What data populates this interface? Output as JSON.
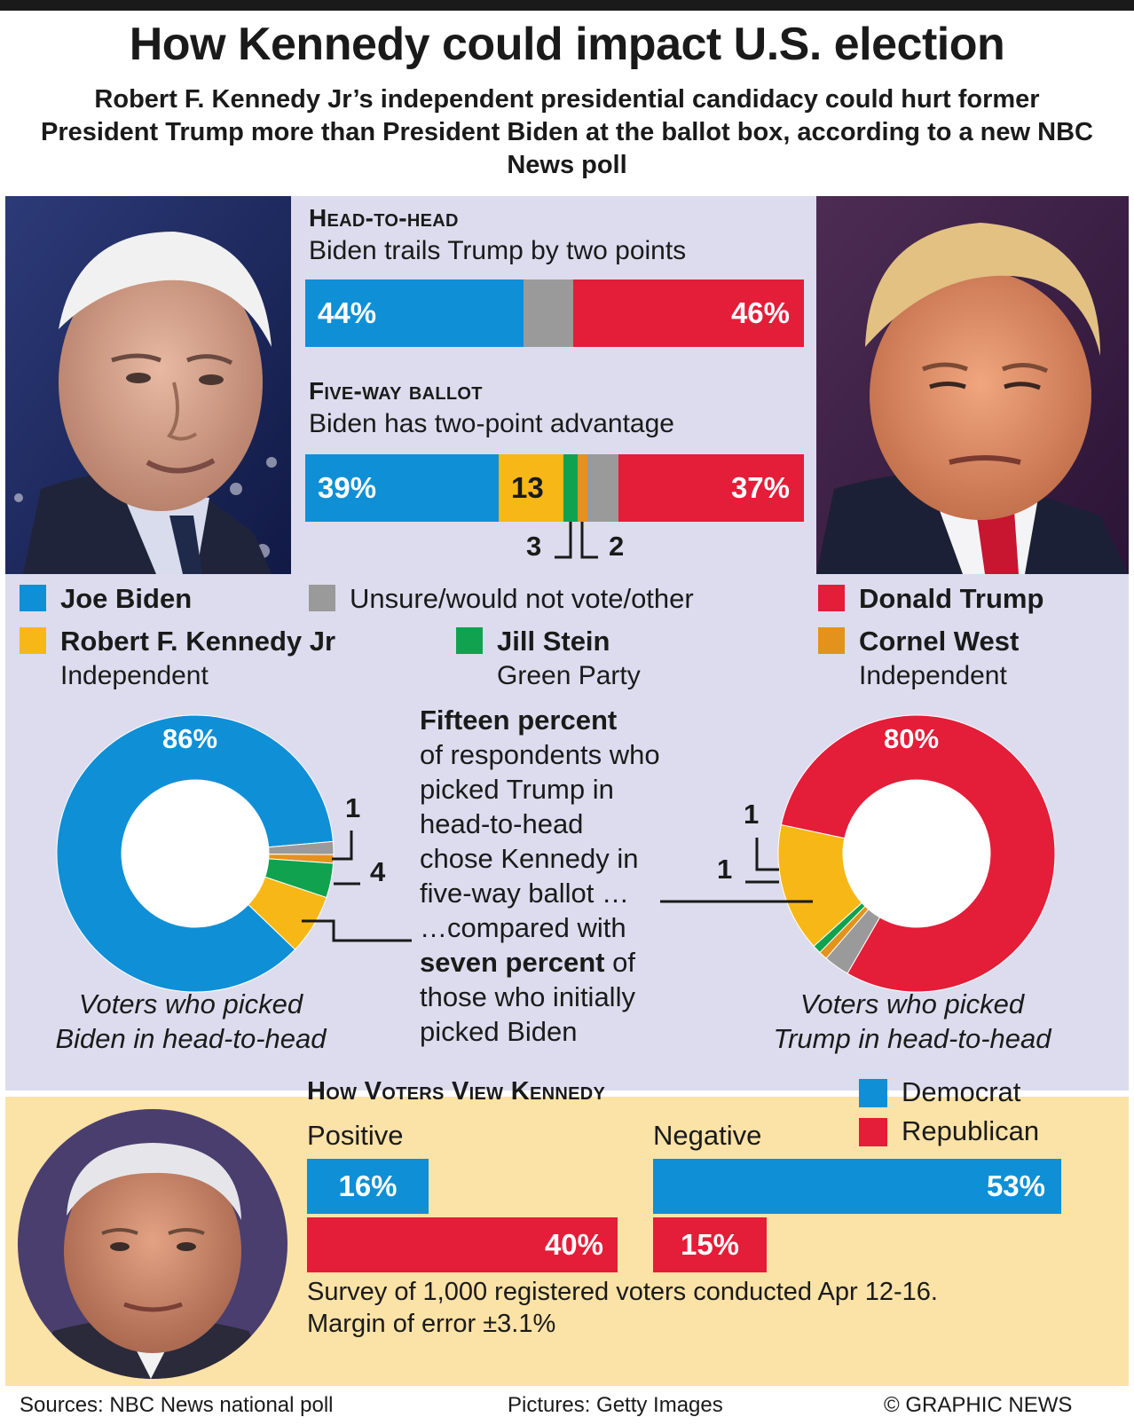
{
  "title": "How Kennedy could impact U.S. election",
  "subtitle": "Robert F. Kennedy Jr’s independent presidential candidacy could hurt former President Trump more than President Biden at the ballot box, according to a new NBC News poll",
  "colors": {
    "biden": "#0f8fd6",
    "trump": "#e41d38",
    "kennedy": "#f7b716",
    "stein": "#10a24f",
    "west": "#e3931c",
    "unsure": "#9a9a9a",
    "panel": "#dcdcee",
    "bottom_panel": "#fbe2a6"
  },
  "head_to_head": {
    "heading": "Head-to-head",
    "subheading": "Biden trails Trump by two points",
    "biden_label": "44%",
    "trump_label": "46%"
  },
  "five_way": {
    "heading": "Five-way ballot",
    "subheading": "Biden has two-point advantage",
    "biden_label": "39%",
    "kennedy_label": "13",
    "stein_label": "3",
    "west_label": "2",
    "trump_label": "37%"
  },
  "legend": {
    "biden": "Joe Biden",
    "unsure": "Unsure/would not vote/other",
    "trump": "Donald Trump",
    "kennedy": "Robert F. Kennedy Jr",
    "kennedy_party": "Independent",
    "stein": "Jill Stein",
    "stein_party": "Green Party",
    "west": "Cornel West",
    "west_party": "Independent"
  },
  "donut_biden": {
    "main_label": "86%",
    "label_a": "1",
    "label_b": "4",
    "caption_1": "Voters who picked",
    "caption_2": "Biden in head-to-head"
  },
  "donut_trump": {
    "main_label": "80%",
    "label_a": "1",
    "label_b": "1",
    "caption_1": "Voters who picked",
    "caption_2": "Trump in head-to-head"
  },
  "middle_note": {
    "bold_1": "Fifteen percent",
    "line_1": "of respondents who",
    "line_2": "picked Trump in",
    "line_3": "head-to-head",
    "line_4": "chose Kennedy in",
    "line_5": "five-way ballot …",
    "line_6": "…compared with",
    "bold_2": "seven percent",
    "line_7_tail": " of",
    "line_8": "those who initially",
    "line_9": "picked Biden"
  },
  "view": {
    "heading": "How Voters View Kennedy",
    "legend_dem": "Democrat",
    "legend_rep": "Republican",
    "positive": "Positive",
    "negative": "Negative",
    "pos_dem_label": "16%",
    "pos_rep_label": "40%",
    "neg_dem_label": "53%",
    "neg_rep_label": "15%",
    "survey_1": "Survey of 1,000 registered voters conducted Apr 12-16.",
    "survey_2": "Margin of error ±3.1%"
  },
  "footer": {
    "sources": "Sources: NBC News national poll",
    "pictures": "Pictures: Getty Images",
    "credit": "© GRAPHIC NEWS"
  },
  "chart_data": [
    {
      "type": "bar",
      "title": "Head-to-head",
      "stacked": true,
      "categories": [
        "Joe Biden",
        "Unsure/would not vote/other",
        "Donald Trump"
      ],
      "values": [
        44,
        10,
        46
      ]
    },
    {
      "type": "bar",
      "title": "Five-way ballot",
      "stacked": true,
      "categories": [
        "Joe Biden",
        "Robert F. Kennedy Jr",
        "Jill Stein",
        "Cornel West",
        "Unsure/would not vote/other",
        "Donald Trump"
      ],
      "values": [
        39,
        13,
        3,
        2,
        6,
        37
      ]
    },
    {
      "type": "pie",
      "title": "Voters who picked Biden in head-to-head",
      "categories": [
        "Joe Biden",
        "Unsure/would not vote/other",
        "Cornel West",
        "Jill Stein",
        "Robert F. Kennedy Jr"
      ],
      "values": [
        86,
        1.5,
        1,
        4,
        7
      ]
    },
    {
      "type": "pie",
      "title": "Voters who picked Trump in head-to-head",
      "categories": [
        "Donald Trump",
        "Unsure/would not vote/other",
        "Cornel West",
        "Jill Stein",
        "Robert F. Kennedy Jr"
      ],
      "values": [
        80,
        3,
        1,
        1,
        15
      ]
    },
    {
      "type": "bar",
      "title": "How Voters View Kennedy",
      "categories": [
        "Positive",
        "Negative"
      ],
      "series": [
        {
          "name": "Democrat",
          "values": [
            16,
            53
          ]
        },
        {
          "name": "Republican",
          "values": [
            40,
            15
          ]
        }
      ],
      "xlim": [
        0,
        65
      ]
    }
  ]
}
